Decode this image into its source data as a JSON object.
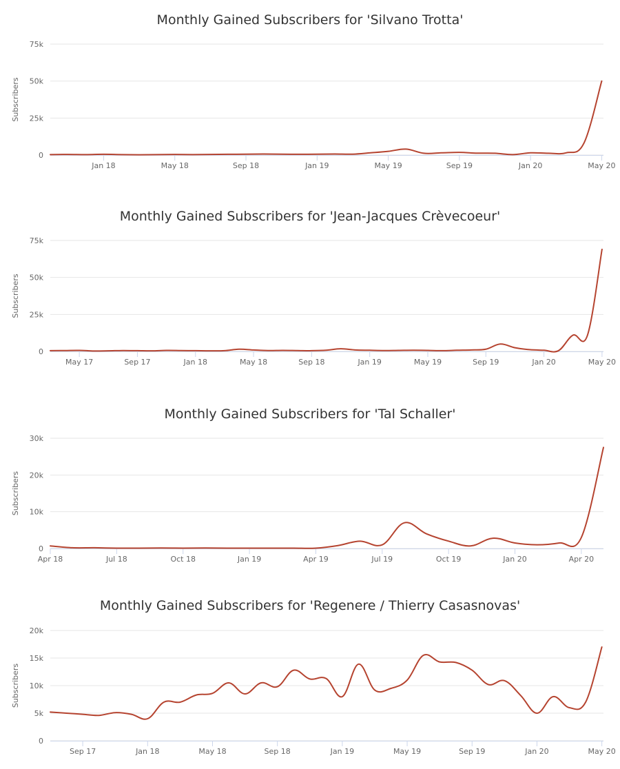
{
  "chart_data": [
    {
      "type": "line",
      "title": "Monthly Gained Subscribers for 'Silvano Trotta'",
      "ylabel": "Subscribers",
      "ylim": [
        0,
        75000
      ],
      "yticks": [
        0,
        25000,
        50000,
        75000
      ],
      "ytick_labels": [
        "0",
        "25k",
        "50k",
        "75k"
      ],
      "xticks": [
        {
          "label": "Jan 18",
          "m": 4
        },
        {
          "label": "May 18",
          "m": 8
        },
        {
          "label": "Sep 18",
          "m": 12
        },
        {
          "label": "Jan 19",
          "m": 16
        },
        {
          "label": "May 19",
          "m": 20
        },
        {
          "label": "Sep 19",
          "m": 24
        },
        {
          "label": "Jan 20",
          "m": 28
        },
        {
          "label": "May 20",
          "m": 32
        }
      ],
      "x_domain": [
        1,
        32.1
      ],
      "line_color": "#b5432f",
      "series": [
        {
          "x": [
            1,
            2,
            3,
            4,
            5,
            6,
            7,
            8,
            9,
            10,
            11,
            12,
            13,
            14,
            15,
            16,
            17,
            18,
            19,
            20,
            21,
            22,
            23,
            24,
            25,
            26,
            27,
            28,
            29,
            30,
            31,
            32
          ],
          "values": [
            300,
            400,
            300,
            500,
            300,
            200,
            300,
            400,
            300,
            400,
            500,
            600,
            700,
            600,
            500,
            600,
            700,
            600,
            1500,
            2500,
            4000,
            1200,
            1500,
            1800,
            1300,
            1200,
            300,
            1500,
            1200,
            1500,
            8000,
            50000
          ]
        }
      ]
    },
    {
      "type": "line",
      "title": "Monthly Gained Subscribers for 'Jean-Jacques Crèvecoeur'",
      "ylabel": "Subscribers",
      "ylim": [
        0,
        75000
      ],
      "yticks": [
        0,
        25000,
        50000,
        75000
      ],
      "ytick_labels": [
        "0",
        "25k",
        "50k",
        "75k"
      ],
      "xticks": [
        {
          "label": "May 17",
          "m": 3
        },
        {
          "label": "Sep 17",
          "m": 7
        },
        {
          "label": "Jan 18",
          "m": 11
        },
        {
          "label": "May 18",
          "m": 15
        },
        {
          "label": "Sep 18",
          "m": 19
        },
        {
          "label": "Jan 19",
          "m": 23
        },
        {
          "label": "May 19",
          "m": 27
        },
        {
          "label": "Sep 19",
          "m": 31
        },
        {
          "label": "Jan 20",
          "m": 35
        },
        {
          "label": "May 20",
          "m": 39
        }
      ],
      "x_domain": [
        1,
        39.1
      ],
      "line_color": "#b5432f",
      "series": [
        {
          "x": [
            1,
            2,
            3,
            4,
            5,
            6,
            7,
            8,
            9,
            10,
            11,
            12,
            13,
            14,
            15,
            16,
            17,
            18,
            19,
            20,
            21,
            22,
            23,
            24,
            25,
            26,
            27,
            28,
            29,
            30,
            31,
            32,
            33,
            34,
            35,
            36,
            37,
            38,
            39
          ],
          "values": [
            500,
            600,
            700,
            300,
            400,
            600,
            500,
            400,
            700,
            600,
            500,
            400,
            500,
            1500,
            1000,
            600,
            700,
            600,
            500,
            800,
            1800,
            1000,
            800,
            600,
            700,
            800,
            700,
            500,
            800,
            1000,
            1500,
            5000,
            2500,
            1200,
            800,
            500,
            11000,
            11000,
            69000
          ]
        }
      ]
    },
    {
      "type": "line",
      "title": "Monthly Gained Subscribers for 'Tal Schaller'",
      "ylabel": "Subscribers",
      "ylim": [
        0,
        30000
      ],
      "yticks": [
        0,
        10000,
        20000,
        30000
      ],
      "ytick_labels": [
        "0",
        "10k",
        "20k",
        "30k"
      ],
      "xticks": [
        {
          "label": "Apr 18",
          "m": 1
        },
        {
          "label": "Jul 18",
          "m": 4
        },
        {
          "label": "Oct 18",
          "m": 7
        },
        {
          "label": "Jan 19",
          "m": 10
        },
        {
          "label": "Apr 19",
          "m": 13
        },
        {
          "label": "Jul 19",
          "m": 16
        },
        {
          "label": "Oct 19",
          "m": 19
        },
        {
          "label": "Jan 20",
          "m": 22
        },
        {
          "label": "Apr 20",
          "m": 25
        }
      ],
      "x_domain": [
        1,
        26
      ],
      "line_color": "#b5432f",
      "series": [
        {
          "x": [
            1,
            2,
            3,
            4,
            5,
            6,
            7,
            8,
            9,
            10,
            11,
            12,
            13,
            14,
            15,
            16,
            17,
            18,
            19,
            20,
            21,
            22,
            23,
            24,
            25,
            26
          ],
          "values": [
            700,
            200,
            200,
            100,
            100,
            150,
            100,
            150,
            100,
            100,
            100,
            100,
            100,
            800,
            2000,
            1000,
            7000,
            4000,
            2000,
            700,
            2800,
            1500,
            1000,
            1500,
            3000,
            27500
          ]
        }
      ]
    },
    {
      "type": "line",
      "title": "Monthly Gained Subscribers for 'Regenere / Thierry Casasnovas'",
      "ylabel": "Subscribers",
      "ylim": [
        0,
        20000
      ],
      "yticks": [
        0,
        5000,
        10000,
        15000,
        20000
      ],
      "ytick_labels": [
        "0",
        "5k",
        "10k",
        "15k",
        "20k"
      ],
      "xticks": [
        {
          "label": "Sep 17",
          "m": 3
        },
        {
          "label": "Jan 18",
          "m": 7
        },
        {
          "label": "May 18",
          "m": 11
        },
        {
          "label": "Sep 18",
          "m": 15
        },
        {
          "label": "Jan 19",
          "m": 19
        },
        {
          "label": "May 19",
          "m": 23
        },
        {
          "label": "Sep 19",
          "m": 27
        },
        {
          "label": "Jan 20",
          "m": 31
        },
        {
          "label": "May 20",
          "m": 35
        }
      ],
      "x_domain": [
        1,
        35.1
      ],
      "line_color": "#b5432f",
      "series": [
        {
          "x": [
            1,
            2,
            3,
            4,
            5,
            6,
            7,
            8,
            9,
            10,
            11,
            12,
            13,
            14,
            15,
            16,
            17,
            18,
            19,
            20,
            21,
            22,
            23,
            24,
            25,
            26,
            27,
            28,
            29,
            30,
            31,
            32,
            33,
            34,
            35
          ],
          "values": [
            5200,
            5000,
            4800,
            4600,
            5100,
            4800,
            4000,
            7000,
            7000,
            8300,
            8600,
            10500,
            8500,
            10500,
            9800,
            12800,
            11200,
            11300,
            8000,
            13900,
            9200,
            9500,
            11000,
            15500,
            14300,
            14200,
            12800,
            10200,
            10900,
            8200,
            5000,
            8000,
            6000,
            7000,
            17000
          ]
        }
      ]
    }
  ]
}
